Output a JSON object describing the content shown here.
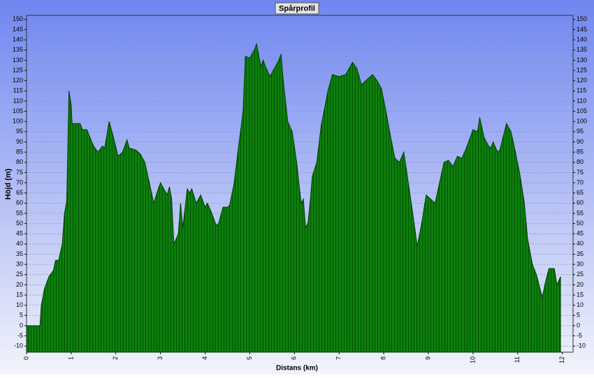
{
  "chart_data": {
    "type": "area",
    "title": "Spårprofil",
    "xlabel": "Distans (km)",
    "ylabel": "Höjd (m)",
    "x": [
      0,
      0.3,
      0.33,
      0.4,
      0.5,
      0.6,
      0.65,
      0.72,
      0.8,
      0.85,
      0.9,
      0.95,
      1.0,
      1.02,
      1.2,
      1.25,
      1.35,
      1.5,
      1.6,
      1.7,
      1.75,
      1.85,
      1.95,
      2.05,
      2.15,
      2.25,
      2.3,
      2.45,
      2.55,
      2.65,
      2.8,
      2.85,
      2.95,
      3.0,
      3.1,
      3.15,
      3.2,
      3.25,
      3.3,
      3.4,
      3.45,
      3.5,
      3.6,
      3.65,
      3.7,
      3.8,
      3.9,
      4.0,
      4.05,
      4.15,
      4.25,
      4.3,
      4.4,
      4.5,
      4.55,
      4.65,
      4.75,
      4.85,
      4.9,
      5.0,
      5.1,
      5.15,
      5.25,
      5.3,
      5.35,
      5.45,
      5.55,
      5.65,
      5.7,
      5.75,
      5.85,
      5.95,
      6.05,
      6.15,
      6.2,
      6.25,
      6.3,
      6.35,
      6.4,
      6.5,
      6.6,
      6.75,
      6.85,
      7.0,
      7.15,
      7.3,
      7.4,
      7.5,
      7.6,
      7.75,
      7.85,
      7.95,
      8.05,
      8.15,
      8.25,
      8.35,
      8.45,
      8.55,
      8.65,
      8.75,
      8.85,
      8.95,
      9.0,
      9.1,
      9.15,
      9.25,
      9.35,
      9.45,
      9.55,
      9.65,
      9.75,
      9.85,
      9.95,
      10.0,
      10.1,
      10.15,
      10.25,
      10.35,
      10.4,
      10.45,
      10.55,
      10.6,
      10.75,
      10.85,
      10.95,
      11.05,
      11.15,
      11.22,
      11.33,
      11.42,
      11.55,
      11.63,
      11.7,
      11.82,
      11.88,
      11.96
    ],
    "values": [
      0,
      0,
      10,
      18,
      24,
      27,
      32,
      32,
      40,
      55,
      61,
      115,
      108,
      99,
      99,
      96,
      96,
      88,
      85,
      88,
      87,
      100,
      92,
      83,
      85,
      91,
      87,
      86,
      84,
      80,
      65,
      60,
      67,
      70,
      66,
      64,
      68,
      62,
      40,
      45,
      60,
      48,
      67,
      65,
      67,
      60,
      64,
      58,
      60,
      55,
      49,
      50,
      58,
      58,
      59,
      70,
      88,
      105,
      132,
      131,
      135,
      138,
      127,
      130,
      127,
      122,
      126,
      130,
      133,
      120,
      100,
      95,
      80,
      60,
      62,
      48,
      50,
      60,
      73,
      80,
      98,
      115,
      123,
      122,
      123,
      129,
      126,
      118,
      120,
      123,
      120,
      116,
      105,
      93,
      82,
      80,
      85,
      70,
      55,
      39,
      50,
      64,
      63,
      61,
      60,
      70,
      80,
      81,
      78,
      83,
      82,
      87,
      93,
      96,
      95,
      102,
      92,
      88,
      87,
      90,
      85,
      86,
      99,
      95,
      85,
      74,
      60,
      43,
      30,
      25,
      14,
      22,
      28,
      28,
      20,
      24
    ],
    "color": "#0a7a0a",
    "xlim": [
      0,
      12.24
    ],
    "ylim": [
      -13,
      152
    ],
    "xticks": [
      0,
      1,
      2,
      3,
      4,
      5,
      6,
      7,
      8,
      9,
      10,
      11,
      12
    ],
    "yticks": [
      -10,
      -5,
      0,
      5,
      10,
      15,
      20,
      25,
      30,
      35,
      40,
      45,
      50,
      55,
      60,
      65,
      70,
      75,
      80,
      85,
      90,
      95,
      100,
      105,
      110,
      115,
      120,
      125,
      130,
      135,
      140,
      145,
      150
    ],
    "grid": true
  }
}
